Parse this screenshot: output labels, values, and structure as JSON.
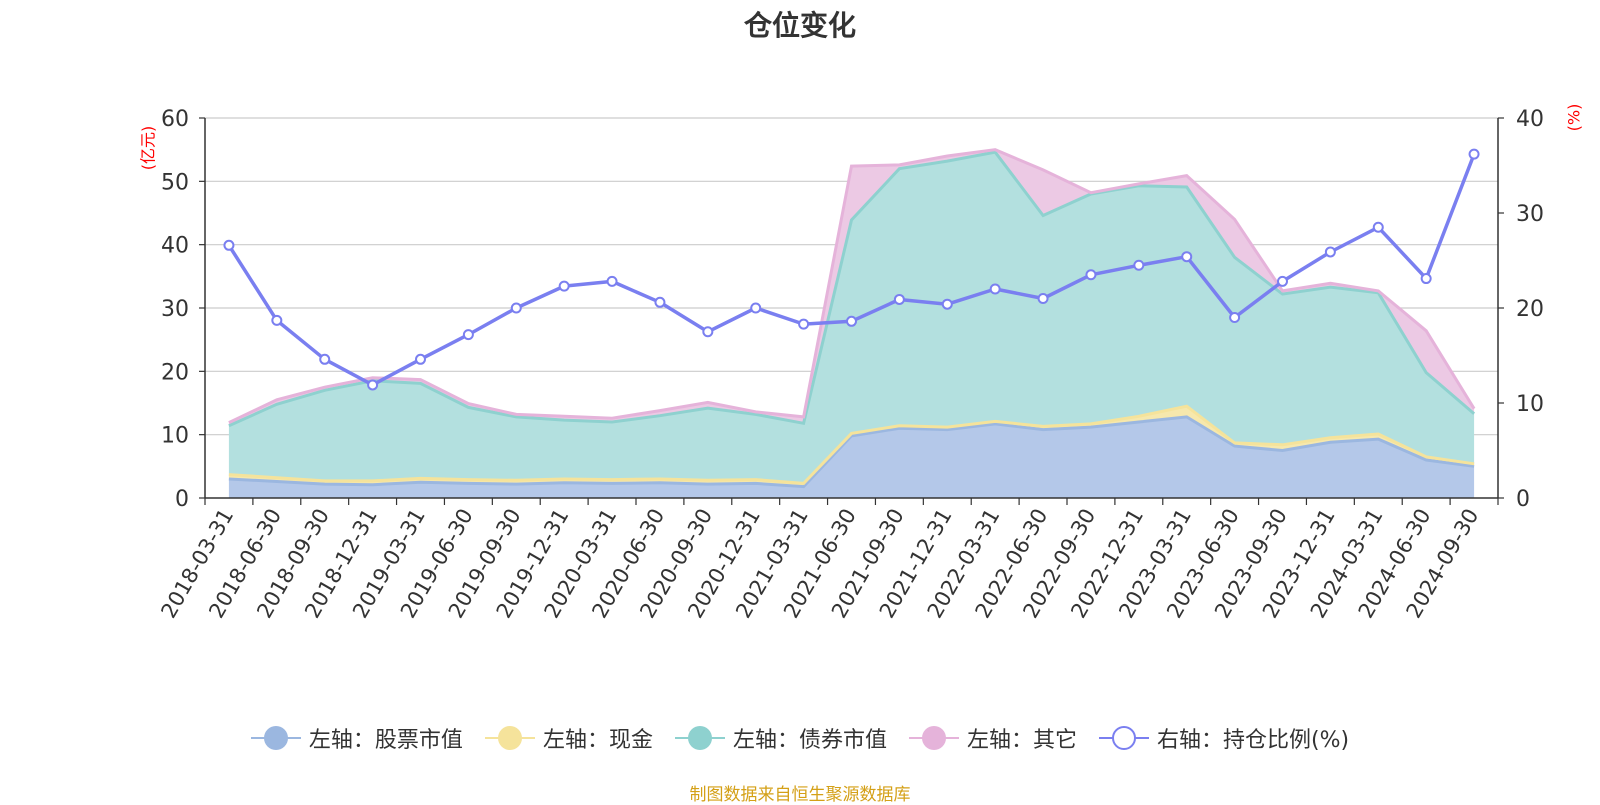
{
  "chart_data": {
    "type": "area",
    "title": "仓位变化",
    "left_axis": {
      "unit_label": "(亿元)",
      "ylim": [
        0,
        60
      ],
      "ticks": [
        0,
        10,
        20,
        30,
        40,
        50,
        60
      ]
    },
    "right_axis": {
      "unit_label": "(%)",
      "ylim": [
        0,
        40
      ],
      "ticks": [
        0,
        10,
        20,
        30,
        40
      ]
    },
    "categories": [
      "2018-03-31",
      "2018-06-30",
      "2018-09-30",
      "2018-12-31",
      "2019-03-31",
      "2019-06-30",
      "2019-09-30",
      "2019-12-31",
      "2020-03-31",
      "2020-06-30",
      "2020-09-30",
      "2020-12-31",
      "2021-03-31",
      "2021-06-30",
      "2021-09-30",
      "2021-12-31",
      "2022-03-31",
      "2022-06-30",
      "2022-09-30",
      "2022-12-31",
      "2023-03-31",
      "2023-06-30",
      "2023-09-30",
      "2023-12-31",
      "2024-03-31",
      "2024-06-30",
      "2024-09-30"
    ],
    "series": [
      {
        "name": "左轴：股票市值",
        "axis": "left",
        "stack": true,
        "color": "#9bb7e0",
        "fill": "#b4c8e9",
        "values": [
          3.0,
          2.6,
          2.2,
          2.1,
          2.5,
          2.3,
          2.2,
          2.4,
          2.3,
          2.4,
          2.2,
          2.3,
          1.8,
          9.8,
          11.0,
          10.8,
          11.7,
          10.8,
          11.2,
          12.0,
          12.8,
          8.2,
          7.5,
          8.8,
          9.3,
          6.0,
          5.0
        ]
      },
      {
        "name": "左轴：现金",
        "axis": "left",
        "stack": true,
        "color": "#f5e39b",
        "fill": "#f6e8ad",
        "values": [
          0.7,
          0.6,
          0.5,
          0.6,
          0.6,
          0.6,
          0.6,
          0.6,
          0.6,
          0.6,
          0.6,
          0.6,
          0.5,
          0.4,
          0.4,
          0.4,
          0.4,
          0.5,
          0.5,
          0.9,
          1.7,
          0.5,
          0.9,
          0.7,
          0.8,
          0.5,
          0.4
        ]
      },
      {
        "name": "左轴：债券市值",
        "axis": "left",
        "stack": true,
        "color": "#8ed1cf",
        "fill": "#b3e0df",
        "values": [
          7.7,
          11.6,
          14.3,
          15.8,
          15.0,
          11.4,
          10.0,
          9.3,
          9.1,
          10.0,
          11.4,
          10.3,
          9.5,
          33.7,
          40.6,
          42.0,
          42.5,
          33.3,
          36.3,
          36.4,
          34.6,
          29.3,
          23.8,
          23.8,
          22.3,
          13.3,
          7.9
        ]
      },
      {
        "name": "左轴：其它",
        "axis": "left",
        "stack": true,
        "color": "#e5b3da",
        "fill": "#ecc9e4",
        "values": [
          0.5,
          0.7,
          0.5,
          0.5,
          0.6,
          0.6,
          0.4,
          0.6,
          0.6,
          0.8,
          0.9,
          0.4,
          1.0,
          8.5,
          0.6,
          0.8,
          0.4,
          7.2,
          0.2,
          0.3,
          1.8,
          6.0,
          0.5,
          0.6,
          0.3,
          6.6,
          0.8
        ]
      },
      {
        "name": "右轴：持仓比例(%)",
        "axis": "right",
        "stack": false,
        "color": "#7a7ff0",
        "values": [
          26.6,
          18.7,
          14.6,
          11.9,
          14.6,
          17.2,
          20.0,
          22.3,
          22.8,
          20.6,
          17.5,
          20.0,
          18.3,
          18.6,
          20.9,
          20.4,
          22.0,
          21.0,
          23.5,
          24.5,
          25.4,
          19.0,
          22.8,
          25.9,
          28.5,
          23.1,
          36.2
        ]
      }
    ]
  },
  "source_text": "制图数据来自恒生聚源数据库"
}
